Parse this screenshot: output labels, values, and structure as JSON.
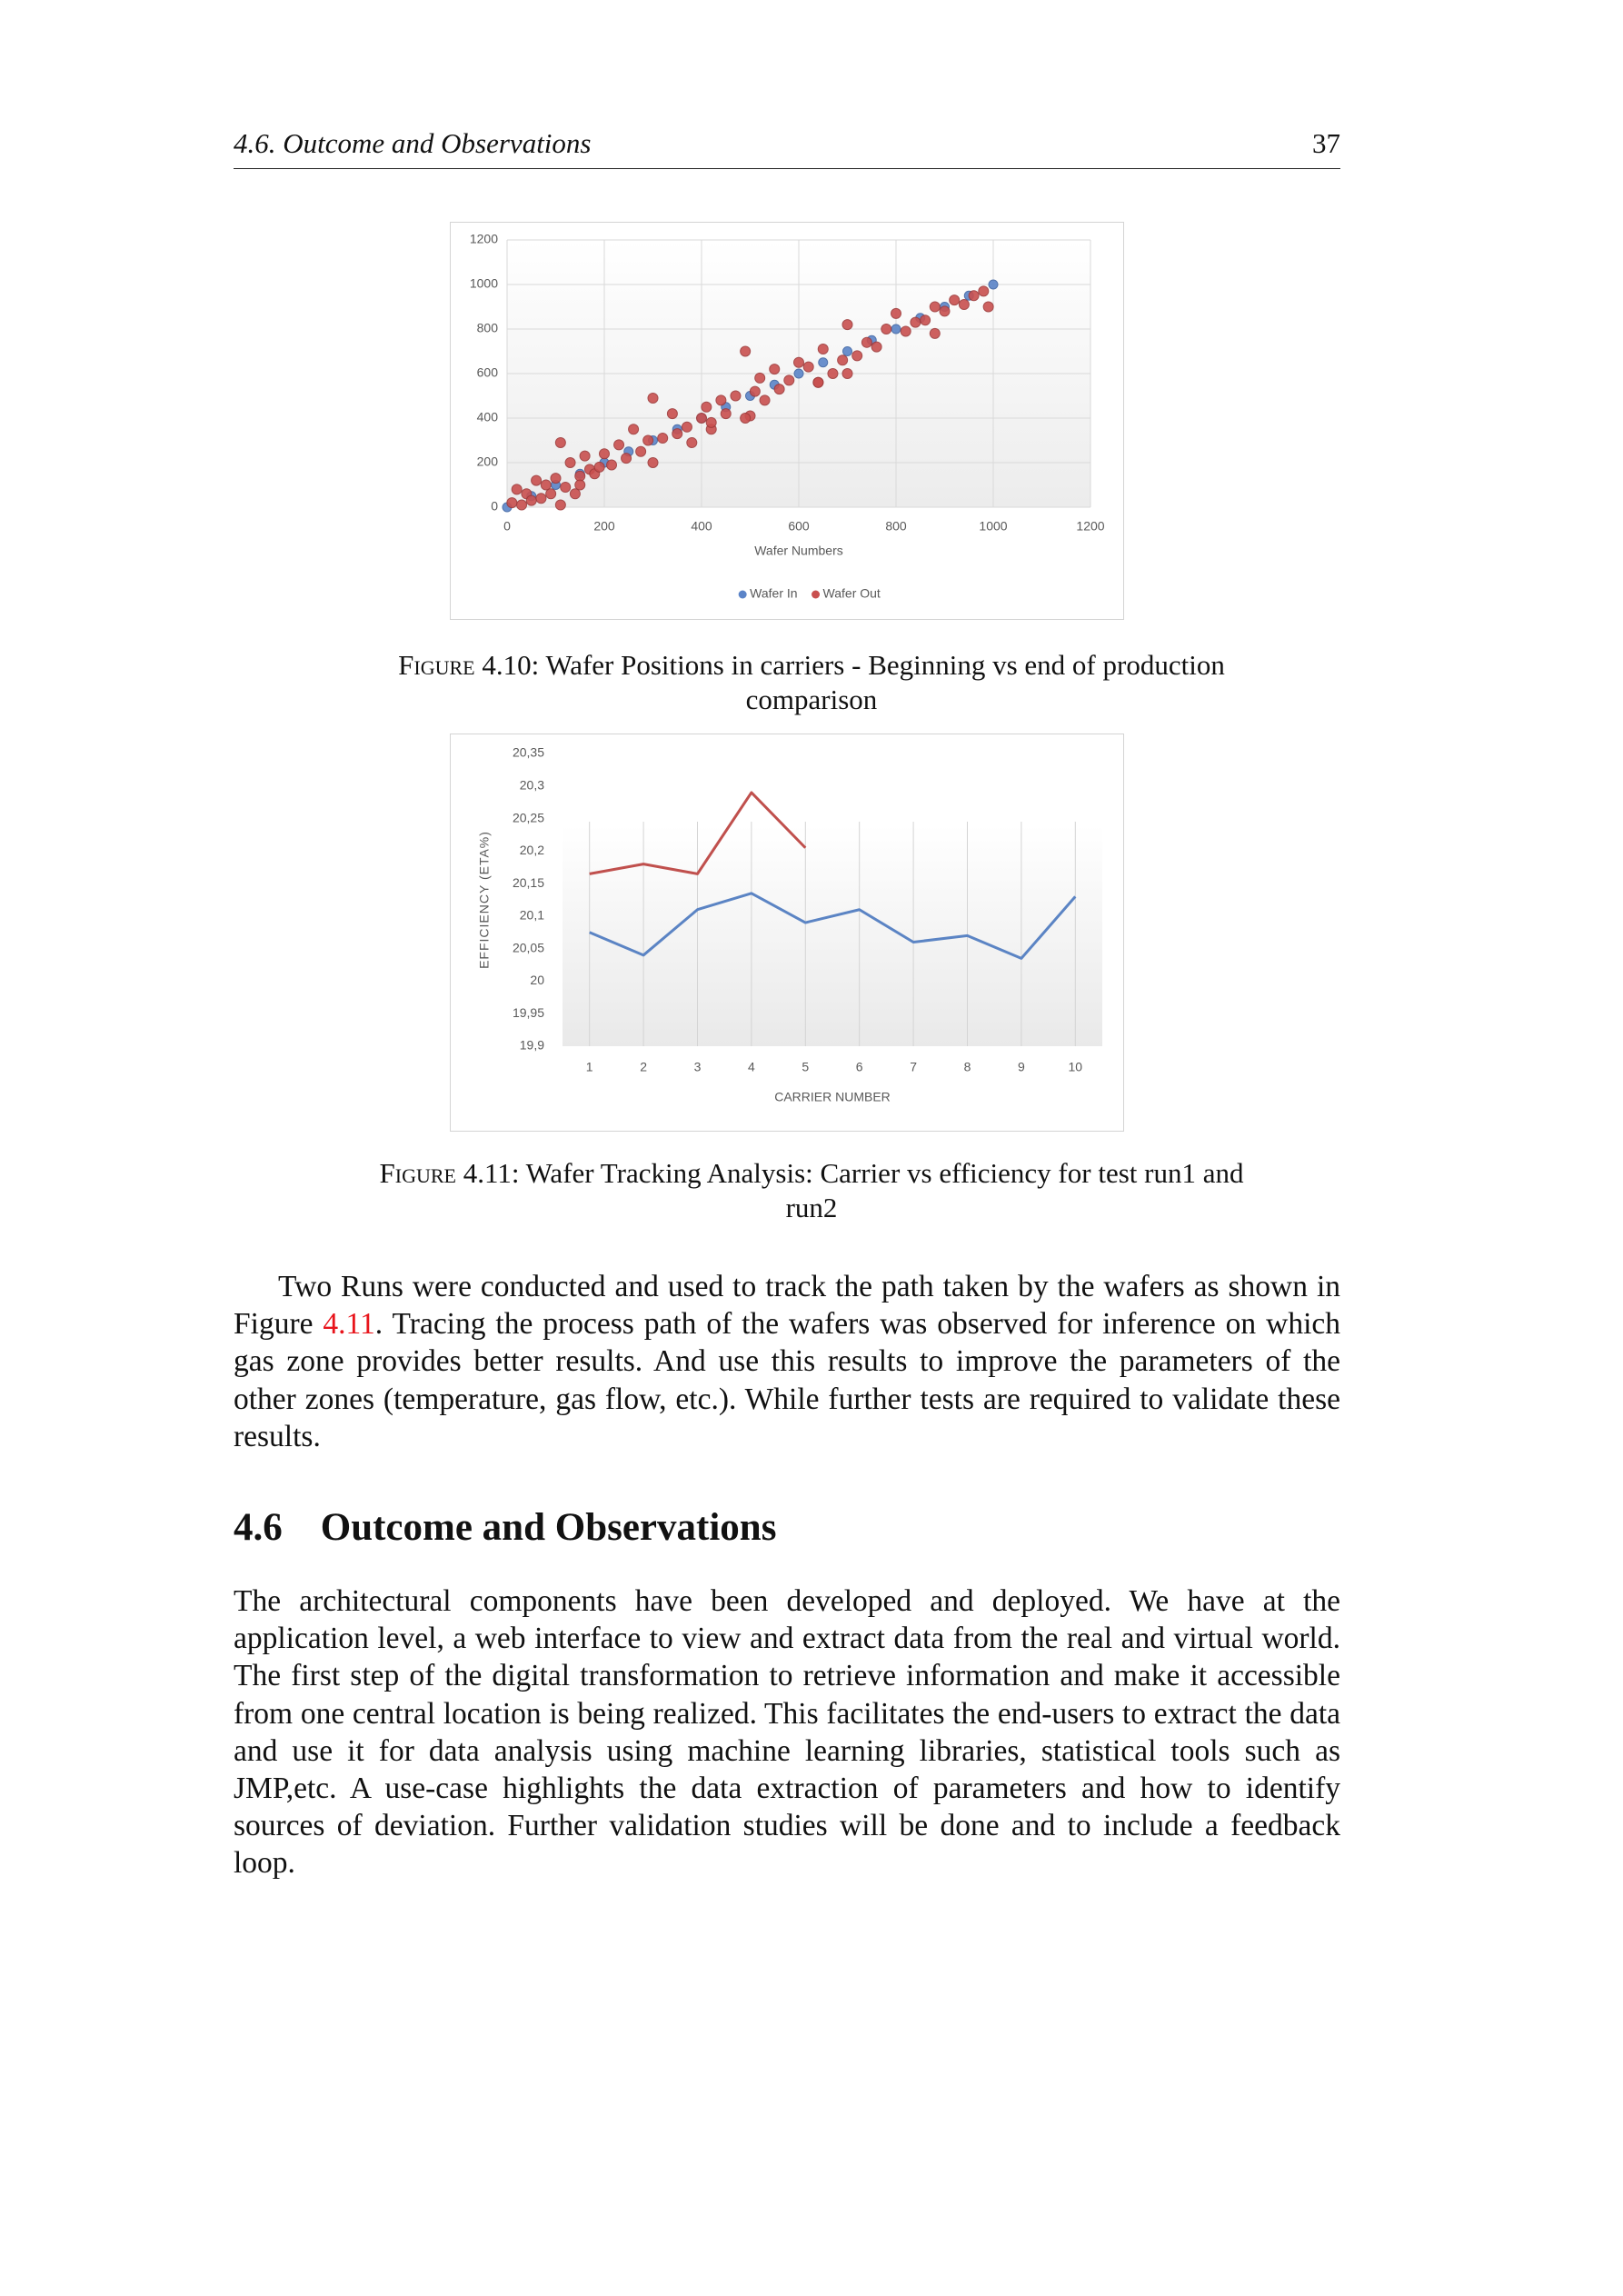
{
  "header": {
    "section": "4.6. Outcome and Observations",
    "page": "37"
  },
  "chart_data": [
    {
      "type": "scatter",
      "xlim": [
        0,
        1200
      ],
      "ylim": [
        0,
        1200
      ],
      "xticks": [
        0,
        200,
        400,
        600,
        800,
        1000,
        1200
      ],
      "yticks": [
        0,
        200,
        400,
        600,
        800,
        1000,
        1200
      ],
      "xlabel": "Wafer Numbers",
      "grid": true,
      "legend": "bottom",
      "series": [
        {
          "name": "Wafer In",
          "color": "#5b84c8",
          "x": [
            0,
            50,
            100,
            150,
            200,
            250,
            300,
            350,
            400,
            450,
            500,
            550,
            600,
            650,
            700,
            750,
            800,
            850,
            900,
            950,
            1000
          ],
          "values": [
            0,
            50,
            100,
            150,
            200,
            250,
            300,
            350,
            400,
            450,
            500,
            550,
            600,
            650,
            700,
            750,
            800,
            850,
            900,
            950,
            1000
          ]
        },
        {
          "name": "Wafer Out",
          "color": "#c9504f",
          "x": [
            10,
            20,
            30,
            40,
            50,
            60,
            70,
            80,
            90,
            100,
            110,
            120,
            130,
            140,
            150,
            160,
            170,
            180,
            190,
            200,
            215,
            230,
            245,
            260,
            275,
            290,
            300,
            320,
            340,
            350,
            370,
            380,
            400,
            410,
            420,
            440,
            450,
            470,
            490,
            500,
            510,
            530,
            550,
            560,
            580,
            600,
            620,
            640,
            650,
            670,
            690,
            700,
            720,
            740,
            760,
            780,
            800,
            820,
            840,
            860,
            880,
            900,
            920,
            940,
            960,
            980,
            990,
            110,
            300,
            490,
            640,
            880,
            700,
            520,
            150,
            420
          ],
          "values": [
            20,
            80,
            10,
            60,
            30,
            120,
            40,
            100,
            60,
            130,
            290,
            90,
            200,
            60,
            140,
            230,
            170,
            150,
            180,
            240,
            190,
            280,
            220,
            350,
            250,
            300,
            490,
            310,
            420,
            330,
            360,
            290,
            400,
            450,
            350,
            480,
            420,
            500,
            700,
            410,
            520,
            480,
            620,
            530,
            570,
            650,
            630,
            560,
            710,
            600,
            660,
            820,
            680,
            740,
            720,
            800,
            870,
            790,
            830,
            840,
            900,
            880,
            930,
            910,
            950,
            970,
            900,
            10,
            200,
            400,
            560,
            780,
            600,
            580,
            100,
            380
          ]
        }
      ]
    },
    {
      "type": "line",
      "categories": [
        "1",
        "2",
        "3",
        "4",
        "5",
        "6",
        "7",
        "8",
        "9",
        "10"
      ],
      "ylim": [
        19.9,
        20.35
      ],
      "yticks": [
        {
          "value": 19.9,
          "label": "19,9"
        },
        {
          "value": 19.95,
          "label": "19,95"
        },
        20,
        {
          "value": 20.05,
          "label": "20,05"
        },
        {
          "value": 20.1,
          "label": "20,1"
        },
        {
          "value": 20.15,
          "label": "20,15"
        },
        {
          "value": 20.2,
          "label": "20,2"
        },
        {
          "value": 20.25,
          "label": "20,25"
        },
        {
          "value": 20.3,
          "label": "20,3"
        },
        {
          "value": 20.35,
          "label": "20,35"
        }
      ],
      "xlabel": "CARRIER NUMBER",
      "ylabel": "EFFICIENCY (ETA%)",
      "xgrid": true,
      "series": [
        {
          "color": "#5b84c4",
          "values": [
            20.075,
            20.04,
            20.11,
            20.135,
            20.09,
            20.11,
            20.06,
            20.07,
            20.035,
            20.13
          ]
        },
        {
          "color": "#c0504d",
          "values": [
            20.165,
            20.18,
            20.165,
            20.29,
            20.205,
            null,
            null,
            null,
            null,
            null
          ]
        }
      ]
    }
  ],
  "captions": [
    {
      "label": "Figure 4.10:",
      "text": "Wafer Positions in carriers - Beginning vs end of production comparison"
    },
    {
      "label": "Figure 4.11:",
      "text": "Wafer Tracking Analysis: Carrier vs efficiency for test run1 and run2"
    }
  ],
  "paragraph1": [
    "Two Runs were conducted and used to track the path taken by the wafers as shown in Figure ",
    "4.11",
    ". Tracing the process path of the wafers was observed for inference on which gas zone provides better results. And use this results to improve the parameters of the other zones (temperature, gas flow, etc.). While further tests are required to validate these results."
  ],
  "section": {
    "number": "4.6",
    "title": "Outcome and Observations"
  },
  "paragraph2": "The architectural components have been developed and deployed. We have at the application level, a web interface to view and extract data from the real and virtual world. The first step of the digital transformation to retrieve information and make it accessible from one central location is being realized. This facilitates the end-users to extract the data and use it for data analysis using machine learning libraries, statistical tools such as JMP,etc. A use-case highlights the data extraction of parameters and how to identify sources of deviation. Further validation studies will be done and to include a feedback loop."
}
